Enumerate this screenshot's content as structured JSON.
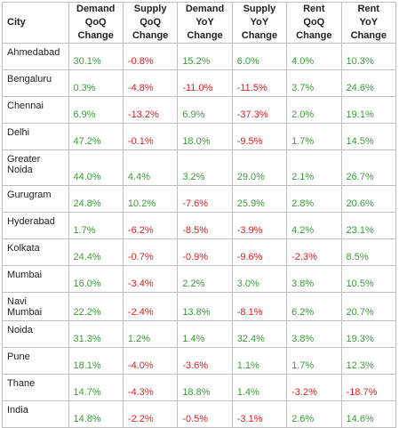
{
  "table": {
    "headers": [
      "City",
      "Demand\nQoQ\nChange",
      "Supply\nQoQ\nChange",
      "Demand\nYoY\nChange",
      "Supply\nYoY\nChange",
      "Rent\nQoQ\nChange",
      "Rent\nYoY\nChange"
    ],
    "rows": [
      {
        "city": "Ahmedabad",
        "values": [
          "30.1%",
          "-0.8%",
          "15.2%",
          "6.0%",
          "4.0%",
          "10.3%"
        ]
      },
      {
        "city": "Bengaluru",
        "values": [
          "0.3%",
          "-4.8%",
          "-11.0%",
          "-11.5%",
          "3.7%",
          "24.6%"
        ]
      },
      {
        "city": "Chennai",
        "values": [
          "6.9%",
          "-13.2%",
          "6.9%",
          "-37.3%",
          "2.0%",
          "19.1%"
        ]
      },
      {
        "city": "Delhi",
        "values": [
          "47.2%",
          "-0.1%",
          "18.0%",
          "-9.5%",
          "1.7%",
          "14.5%"
        ]
      },
      {
        "city": "Greater\nNoida",
        "values": [
          "44.0%",
          "4.4%",
          "3.2%",
          "29.0%",
          "2.1%",
          "26.7%"
        ]
      },
      {
        "city": "Gurugram",
        "values": [
          "24.8%",
          "10.2%",
          "-7.6%",
          "25.9%",
          "2.8%",
          "20.6%"
        ]
      },
      {
        "city": "Hyderabad",
        "values": [
          "1.7%",
          "-6.2%",
          "-8.5%",
          "-3.9%",
          "4.2%",
          "23.1%"
        ]
      },
      {
        "city": "Kolkata",
        "values": [
          "24.4%",
          "-0.7%",
          "-0.9%",
          "-9.6%",
          "-2.3%",
          "8.5%"
        ]
      },
      {
        "city": "Mumbai",
        "values": [
          "16.0%",
          "-3.4%",
          "2.2%",
          "3.0%",
          "3.8%",
          "10.5%"
        ]
      },
      {
        "city": "Navi Mumbai",
        "values": [
          "22.2%",
          "-2.4%",
          "13.8%",
          "-8.1%",
          "6.2%",
          "20.7%"
        ]
      },
      {
        "city": "Noida",
        "values": [
          "31.3%",
          "1.2%",
          "1.4%",
          "32.4%",
          "3.8%",
          "19.3%"
        ]
      },
      {
        "city": "Pune",
        "values": [
          "18.1%",
          "-4.0%",
          "-3.6%",
          "1.1%",
          "1.7%",
          "12.3%"
        ]
      },
      {
        "city": "Thane",
        "values": [
          "14.7%",
          "-4.3%",
          "18.8%",
          "1.4%",
          "-3.2%",
          "-18.7%"
        ]
      },
      {
        "city": "India",
        "values": [
          "14.8%",
          "-2.2%",
          "-0.5%",
          "-3.1%",
          "2.6%",
          "14.6%"
        ]
      }
    ]
  },
  "colors": {
    "positive": "#3c9b3c",
    "negative": "#e02020",
    "border": "#bfbfbf"
  }
}
